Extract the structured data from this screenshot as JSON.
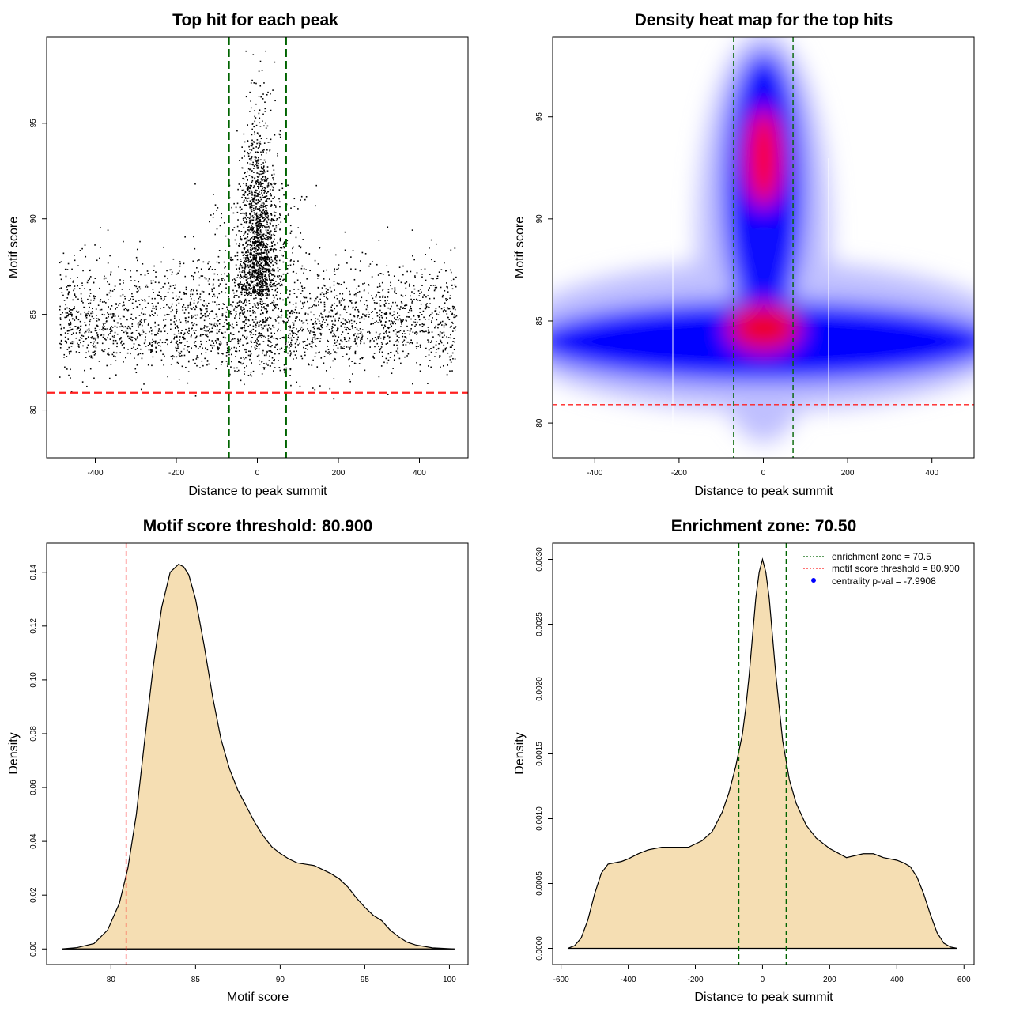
{
  "chart_data": [
    {
      "type": "scatter",
      "title": "Top hit for each peak",
      "xlabel": "Distance to peak summit",
      "ylabel": "Motif score",
      "xlim": [
        -520,
        520
      ],
      "ylim": [
        77.5,
        99.5
      ],
      "xticks": [
        -400,
        -200,
        0,
        200,
        400
      ],
      "xtick_labels": [
        "-400",
        "-200",
        "0",
        "200",
        "400"
      ],
      "yticks": [
        80,
        85,
        90,
        95
      ],
      "ytick_labels": [
        "80",
        "85",
        "90",
        "95"
      ],
      "vlines": [
        -70.5,
        70.5
      ],
      "hline": 80.9,
      "colors": {
        "points": "#000000",
        "enrichment": "#006400",
        "threshold": "#ff2020"
      }
    },
    {
      "type": "heatmap",
      "title": "Density heat map for the top hits",
      "xlabel": "Distance to peak summit",
      "ylabel": "Motif score",
      "xlim": [
        -500,
        500
      ],
      "ylim": [
        78.3,
        98.9
      ],
      "xticks": [
        -400,
        -200,
        0,
        200,
        400
      ],
      "xtick_labels": [
        "-400",
        "-200",
        "0",
        "200",
        "400"
      ],
      "yticks": [
        80,
        85,
        90,
        95
      ],
      "ytick_labels": [
        "80",
        "85",
        "90",
        "95"
      ],
      "vlines": [
        -70.5,
        70.5
      ],
      "hline": 80.9,
      "colors": {
        "low": "#ffffff",
        "mid": "#0000ff",
        "high": "#ff0000",
        "enrichment": "#006400",
        "threshold": "#ff2020"
      }
    },
    {
      "type": "area",
      "title": "Motif score threshold: 80.900",
      "xlabel": "Motif score",
      "ylabel": "Density",
      "xlim": [
        76.2,
        101.1
      ],
      "ylim": [
        -0.0058,
        0.1508
      ],
      "xticks": [
        80,
        85,
        90,
        95,
        100
      ],
      "xtick_labels": [
        "80",
        "85",
        "90",
        "95",
        "100"
      ],
      "yticks": [
        0,
        0.02,
        0.04,
        0.06,
        0.08,
        0.1,
        0.12,
        0.14
      ],
      "ytick_labels": [
        "0.00",
        "0.02",
        "0.04",
        "0.06",
        "0.08",
        "0.10",
        "0.12",
        "0.14"
      ],
      "vline": 80.9,
      "x": [
        77.1,
        78.0,
        79.0,
        79.8,
        80.5,
        81.0,
        81.5,
        82.0,
        82.5,
        83.0,
        83.5,
        84.0,
        84.3,
        84.6,
        85.0,
        85.5,
        86.0,
        86.5,
        87.0,
        87.5,
        88.0,
        88.5,
        89.0,
        89.5,
        90.0,
        90.5,
        91.0,
        91.5,
        92.0,
        92.5,
        93.0,
        93.5,
        94.0,
        94.5,
        95.0,
        95.5,
        96.0,
        96.5,
        97.0,
        97.5,
        98.0,
        99.0,
        100.0,
        100.3
      ],
      "y": [
        0.0,
        0.0005,
        0.002,
        0.007,
        0.017,
        0.03,
        0.05,
        0.078,
        0.105,
        0.127,
        0.14,
        0.143,
        0.142,
        0.139,
        0.13,
        0.113,
        0.094,
        0.078,
        0.067,
        0.059,
        0.053,
        0.047,
        0.042,
        0.038,
        0.0355,
        0.0335,
        0.032,
        0.0315,
        0.031,
        0.0295,
        0.028,
        0.026,
        0.023,
        0.019,
        0.0155,
        0.0125,
        0.0105,
        0.007,
        0.0045,
        0.0025,
        0.0015,
        0.0004,
        0.0001,
        0.0
      ],
      "colors": {
        "fill": "#f5deb3",
        "line": "#000000",
        "threshold": "#ff2020"
      }
    },
    {
      "type": "area",
      "title": "Enrichment zone: 70.50",
      "xlabel": "Distance to peak summit",
      "ylabel": "Density",
      "xlim": [
        -625,
        630
      ],
      "ylim": [
        -0.000125,
        0.003125
      ],
      "xticks": [
        -600,
        -400,
        -200,
        0,
        200,
        400,
        600
      ],
      "xtick_labels": [
        "-600",
        "-400",
        "-200",
        "0",
        "200",
        "400",
        "600"
      ],
      "yticks": [
        0,
        0.0005,
        0.001,
        0.0015,
        0.002,
        0.0025,
        0.003
      ],
      "ytick_labels": [
        "0.0000",
        "0.0005",
        "0.0010",
        "0.0015",
        "0.0020",
        "0.0025",
        "0.0030"
      ],
      "vlines": [
        -70.5,
        70.5
      ],
      "x": [
        -580,
        -560,
        -540,
        -520,
        -500,
        -480,
        -460,
        -440,
        -420,
        -400,
        -370,
        -340,
        -300,
        -260,
        -220,
        -180,
        -150,
        -120,
        -100,
        -80,
        -60,
        -50,
        -40,
        -30,
        -20,
        -10,
        0,
        10,
        20,
        30,
        40,
        50,
        60,
        80,
        100,
        130,
        160,
        200,
        250,
        300,
        330,
        360,
        400,
        420,
        440,
        460,
        480,
        500,
        520,
        540,
        560,
        580
      ],
      "y": [
        0.0,
        2e-05,
        8e-05,
        0.00022,
        0.00042,
        0.00058,
        0.00065,
        0.00066,
        0.00067,
        0.00069,
        0.00073,
        0.00076,
        0.00078,
        0.00078,
        0.00078,
        0.00083,
        0.0009,
        0.00105,
        0.0012,
        0.0014,
        0.00165,
        0.00185,
        0.0021,
        0.0024,
        0.0027,
        0.0029,
        0.003,
        0.0029,
        0.0027,
        0.0024,
        0.0021,
        0.00185,
        0.0016,
        0.0013,
        0.00112,
        0.00095,
        0.00085,
        0.00077,
        0.0007,
        0.00073,
        0.00073,
        0.0007,
        0.00068,
        0.00066,
        0.00063,
        0.00055,
        0.00042,
        0.00026,
        0.00012,
        4e-05,
        1e-05,
        0.0
      ],
      "legend": {
        "position": "top-right",
        "entries": [
          "enrichment zone = 70.5",
          "motif score threshold = 80.900",
          "centrality p-val = -7.9908"
        ]
      },
      "colors": {
        "fill": "#f5deb3",
        "line": "#000000",
        "enrichment": "#006400",
        "threshold": "#ff2020",
        "pval": "#0000ff"
      }
    }
  ]
}
